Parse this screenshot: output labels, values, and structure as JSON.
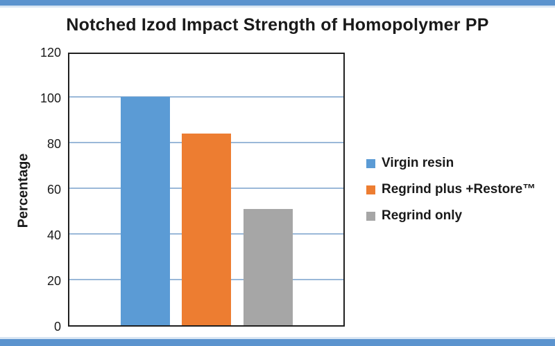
{
  "frame": {
    "background": "#ffffff",
    "accent_bar_color": "#5b93ce",
    "accent_bar_light": "#d9e6f3"
  },
  "chart_data": {
    "type": "bar",
    "title": "Notched Izod Impact Strength of Homopolymer PP",
    "xlabel": "",
    "ylabel": "Percentage",
    "ylim": [
      0,
      120
    ],
    "yticks": [
      0,
      20,
      40,
      60,
      80,
      100,
      120
    ],
    "grid": true,
    "gridline_color": "#9ab8d8",
    "plot_border_color": "#1f1f1f",
    "legend_position": "right",
    "series": [
      {
        "name": "Virgin resin",
        "value": 100,
        "color": "#5b9bd5"
      },
      {
        "name": "Regrind plus +Restore™",
        "value": 84,
        "color": "#ed7d31"
      },
      {
        "name": "Regrind only",
        "value": 51,
        "color": "#a6a6a6"
      }
    ]
  }
}
